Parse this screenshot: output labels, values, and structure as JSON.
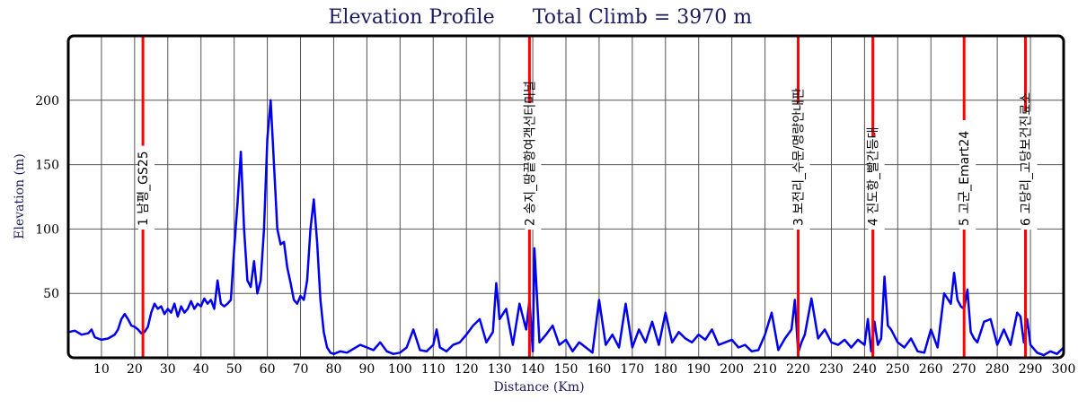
{
  "chart_data": {
    "type": "line",
    "title": "Elevation Profile",
    "subtitle": "Total Climb = 3970 m",
    "xlabel": "Distance (Km)",
    "ylabel": "Elevation (m)",
    "xlim": [
      0,
      300
    ],
    "ylim": [
      0,
      250
    ],
    "x_ticks": [
      10,
      20,
      30,
      40,
      50,
      60,
      70,
      80,
      90,
      100,
      110,
      120,
      130,
      140,
      150,
      160,
      170,
      180,
      190,
      200,
      210,
      220,
      230,
      240,
      250,
      260,
      270,
      280,
      290,
      300
    ],
    "y_ticks": [
      50,
      100,
      150,
      200
    ],
    "grid": true,
    "line_color": "#0000ee",
    "marker_color": "#ff0000",
    "checkpoints": [
      {
        "x": 22.5,
        "label": "1 남평_GS25"
      },
      {
        "x": 139,
        "label": "2 송지_땅끝항여객선터미널"
      },
      {
        "x": 220,
        "label": "3 보전리_수문/명량안내판"
      },
      {
        "x": 242.5,
        "label": "4 진도항_빨간등대"
      },
      {
        "x": 270,
        "label": "5 고군_Emart24"
      },
      {
        "x": 288.5,
        "label": "6 고당리_고당보건진료소"
      }
    ],
    "series": [
      {
        "x": [
          0,
          2,
          4,
          6,
          7,
          8,
          9,
          10,
          12,
          14,
          15,
          16,
          17,
          18,
          19,
          20,
          21,
          22,
          23,
          24,
          25,
          26,
          27,
          28,
          29,
          30,
          31,
          32,
          33,
          34,
          35,
          36,
          37,
          38,
          39,
          40,
          41,
          42,
          43,
          44,
          45,
          46,
          47,
          48,
          49,
          50,
          51,
          52,
          53,
          54,
          55,
          56,
          57,
          58,
          59,
          60,
          61,
          62,
          63,
          64,
          65,
          66,
          67,
          68,
          69,
          70,
          71,
          72,
          73,
          74,
          75,
          76,
          77,
          78,
          79,
          80,
          82,
          84,
          86,
          88,
          90,
          92,
          94,
          96,
          98,
          100,
          102,
          104,
          106,
          108,
          110,
          111,
          112,
          114,
          116,
          118,
          120,
          122,
          124,
          126,
          128,
          129,
          130,
          132,
          134,
          136,
          138,
          139,
          140,
          140.5,
          141,
          142,
          144,
          146,
          148,
          150,
          152,
          154,
          156,
          158,
          160,
          162,
          164,
          166,
          168,
          170,
          172,
          174,
          176,
          178,
          180,
          182,
          184,
          186,
          188,
          190,
          192,
          194,
          196,
          198,
          200,
          202,
          204,
          206,
          208,
          210,
          212,
          214,
          216,
          218,
          219,
          220,
          221,
          222,
          224,
          226,
          228,
          230,
          232,
          234,
          236,
          238,
          240,
          241,
          242,
          243,
          244,
          245,
          246,
          247,
          248,
          250,
          252,
          254,
          256,
          258,
          260,
          262,
          264,
          266,
          267,
          268,
          269,
          270,
          271,
          272,
          273,
          274,
          276,
          278,
          280,
          282,
          284,
          286,
          287,
          288,
          289,
          290,
          292,
          294,
          296,
          298,
          300
        ],
        "values": [
          20,
          21,
          18,
          19,
          22,
          16,
          15,
          14,
          15,
          18,
          22,
          30,
          34,
          30,
          25,
          24,
          22,
          19,
          20,
          24,
          35,
          42,
          38,
          40,
          34,
          38,
          35,
          42,
          32,
          40,
          35,
          38,
          44,
          38,
          42,
          40,
          46,
          42,
          45,
          38,
          60,
          42,
          40,
          42,
          45,
          85,
          120,
          160,
          100,
          60,
          55,
          75,
          50,
          60,
          100,
          170,
          200,
          150,
          100,
          88,
          90,
          70,
          58,
          45,
          42,
          48,
          45,
          60,
          100,
          123,
          90,
          45,
          20,
          8,
          4,
          3,
          5,
          4,
          7,
          10,
          8,
          6,
          12,
          5,
          3,
          4,
          8,
          22,
          6,
          5,
          10,
          22,
          8,
          5,
          10,
          12,
          18,
          25,
          30,
          12,
          20,
          58,
          30,
          38,
          10,
          42,
          22,
          45,
          5,
          85,
          60,
          12,
          18,
          25,
          10,
          14,
          5,
          12,
          8,
          4,
          45,
          10,
          18,
          8,
          42,
          8,
          22,
          12,
          28,
          10,
          35,
          12,
          20,
          15,
          12,
          18,
          14,
          22,
          10,
          12,
          14,
          8,
          10,
          5,
          6,
          18,
          35,
          6,
          15,
          22,
          45,
          4,
          12,
          18,
          46,
          15,
          22,
          12,
          10,
          14,
          8,
          14,
          10,
          30,
          5,
          28,
          10,
          15,
          63,
          25,
          22,
          12,
          8,
          15,
          5,
          4,
          22,
          8,
          50,
          42,
          66,
          45,
          40,
          38,
          53,
          20,
          15,
          12,
          28,
          30,
          10,
          22,
          10,
          35,
          32,
          12,
          30,
          10,
          4,
          2,
          5,
          3,
          8
        ]
      }
    ]
  }
}
